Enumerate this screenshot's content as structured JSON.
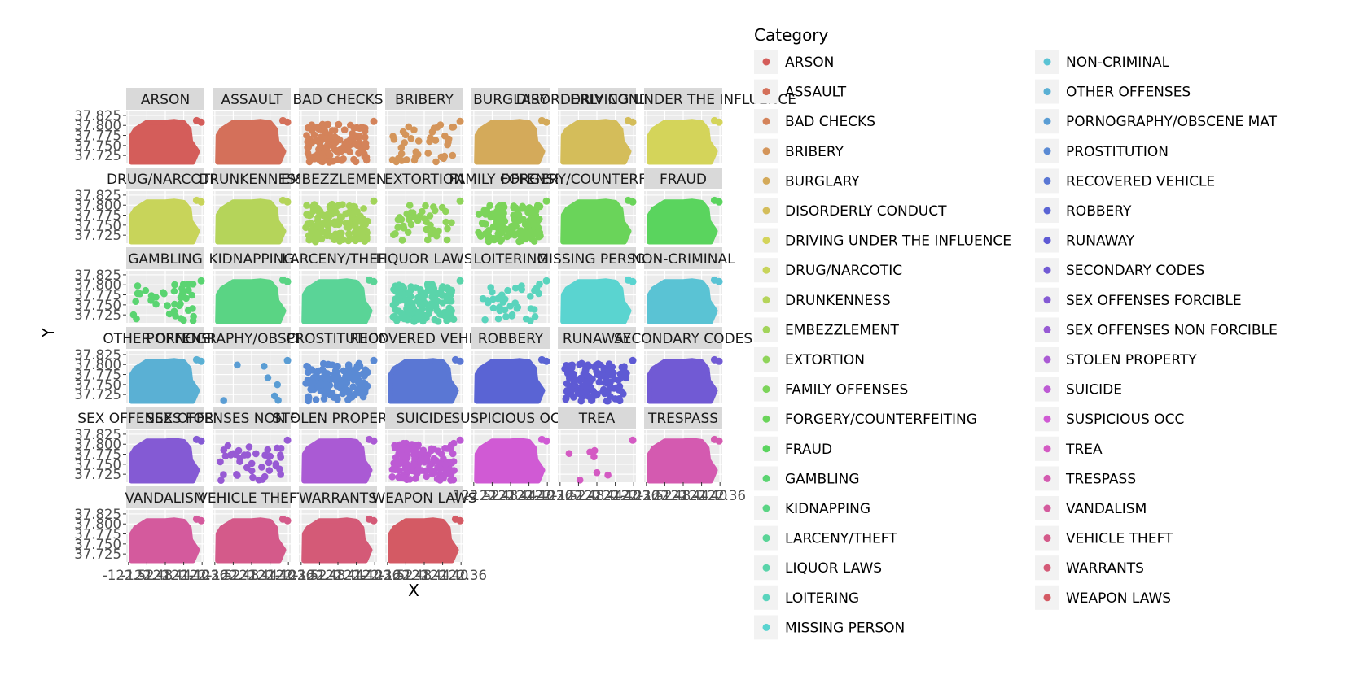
{
  "chart_data": {
    "type": "scatter",
    "facet": "wrap",
    "facet_ncol": 7,
    "xlabel": "X",
    "ylabel": "Y",
    "x_tick_labels": [
      "-122.52",
      "-122.48",
      "-122.44",
      "-122.40",
      "-122.36"
    ],
    "x_ticks": [
      -122.52,
      -122.48,
      -122.44,
      -122.4,
      -122.36
    ],
    "y_tick_labels": [
      "37.825",
      "37.800",
      "37.775",
      "37.750",
      "37.725"
    ],
    "y_ticks": [
      37.825,
      37.8,
      37.775,
      37.75,
      37.725
    ],
    "xlim": [
      -122.525,
      -122.355
    ],
    "ylim": [
      37.705,
      37.835
    ],
    "legend": {
      "title": "Category",
      "position": "right"
    },
    "grid": true,
    "panels": [
      {
        "category": "ARSON",
        "strip": "ARSON",
        "color": "#d45d5a",
        "density": "dense"
      },
      {
        "category": "ASSAULT",
        "strip": "ASSAULT",
        "color": "#d4705a",
        "density": "dense"
      },
      {
        "category": "BAD CHECKS",
        "strip": "BAD CHECKS",
        "color": "#d4835a",
        "density": "medium"
      },
      {
        "category": "BRIBERY",
        "strip": "BRIBERY",
        "color": "#d4955a",
        "density": "sparse"
      },
      {
        "category": "BURGLARY",
        "strip": "BURGLARY",
        "color": "#d4aa5a",
        "density": "dense"
      },
      {
        "category": "DISORDERLY CONDUCT",
        "strip": "DISORDERLY CONDUCT",
        "color": "#d4bd5a",
        "density": "dense"
      },
      {
        "category": "DRIVING UNDER THE INFLUENCE",
        "strip": "DRIVING UNDER THE INFLUENCE",
        "color": "#d4d45a",
        "density": "dense"
      },
      {
        "category": "DRUG/NARCOTIC",
        "strip": "DRUG/NARCOTIC",
        "color": "#c8d45a",
        "density": "dense"
      },
      {
        "category": "DRUNKENNESS",
        "strip": "DRUNKENNESS",
        "color": "#b5d45a",
        "density": "dense"
      },
      {
        "category": "EMBEZZLEMENT",
        "strip": "EMBEZZLEMENT",
        "color": "#a2d45a",
        "density": "medium"
      },
      {
        "category": "EXTORTION",
        "strip": "EXTORTION",
        "color": "#8fd45a",
        "density": "sparse"
      },
      {
        "category": "FAMILY OFFENSES",
        "strip": "FAMILY OFFENSES",
        "color": "#7cd45a",
        "density": "medium"
      },
      {
        "category": "FORGERY/COUNTERFEITING",
        "strip": "FORGERY/COUNTERFEITING",
        "color": "#6ad45a",
        "density": "dense"
      },
      {
        "category": "FRAUD",
        "strip": "FRAUD",
        "color": "#5ad45e",
        "density": "dense"
      },
      {
        "category": "GAMBLING",
        "strip": "GAMBLING",
        "color": "#5ad471",
        "density": "sparse"
      },
      {
        "category": "KIDNAPPING",
        "strip": "KIDNAPPING",
        "color": "#5ad484",
        "density": "dense"
      },
      {
        "category": "LARCENY/THEFT",
        "strip": "LARCENY/THEFT",
        "color": "#5ad497",
        "density": "dense"
      },
      {
        "category": "LIQUOR LAWS",
        "strip": "LIQUOR LAWS",
        "color": "#5ad4aa",
        "density": "medium"
      },
      {
        "category": "LOITERING",
        "strip": "LOITERING",
        "color": "#5ad4bd",
        "density": "sparse"
      },
      {
        "category": "MISSING PERSON",
        "strip": "MISSING PERSON",
        "color": "#5ad4d0",
        "density": "dense"
      },
      {
        "category": "NON-CRIMINAL",
        "strip": "NON-CRIMINAL",
        "color": "#5ac3d4",
        "density": "dense"
      },
      {
        "category": "OTHER OFFENSES",
        "strip": "OTHER OFFENSES",
        "color": "#5ab0d4",
        "density": "dense"
      },
      {
        "category": "PORNOGRAPHY/OBSCENE MAT",
        "strip": "PORNOGRAPHY/OBSCENE MAT",
        "color": "#5a9dd4",
        "density": "tiny"
      },
      {
        "category": "PROSTITUTION",
        "strip": "PROSTITUTION",
        "color": "#5a8ad4",
        "density": "medium"
      },
      {
        "category": "RECOVERED VEHICLE",
        "strip": "RECOVERED VEHICLE",
        "color": "#5a77d4",
        "density": "dense"
      },
      {
        "category": "ROBBERY",
        "strip": "ROBBERY",
        "color": "#5a64d4",
        "density": "dense"
      },
      {
        "category": "RUNAWAY",
        "strip": "RUNAWAY",
        "color": "#5e5ad4",
        "density": "medium"
      },
      {
        "category": "SECONDARY CODES",
        "strip": "SECONDARY CODES",
        "color": "#715ad4",
        "density": "dense"
      },
      {
        "category": "SEX OFFENSES FORCIBLE",
        "strip": "SEX OFFENSES FORCIBLE",
        "color": "#845ad4",
        "density": "dense"
      },
      {
        "category": "SEX OFFENSES NON FORCIBLE",
        "strip": "SEX OFFENSES NON FORCIBLE",
        "color": "#975ad4",
        "density": "sparse"
      },
      {
        "category": "STOLEN PROPERTY",
        "strip": "STOLEN PROPERTY",
        "color": "#aa5ad4",
        "density": "dense"
      },
      {
        "category": "SUICIDE",
        "strip": "SUICIDE",
        "color": "#bd5ad4",
        "density": "medium"
      },
      {
        "category": "SUSPICIOUS OCC",
        "strip": "SUSPICIOUS OCC",
        "color": "#d05ad4",
        "density": "dense"
      },
      {
        "category": "TREA",
        "strip": "TREA",
        "color": "#d45ac3",
        "density": "tiny"
      },
      {
        "category": "TRESPASS",
        "strip": "TRESPASS",
        "color": "#d45ab0",
        "density": "dense"
      },
      {
        "category": "VANDALISM",
        "strip": "VANDALISM",
        "color": "#d45a9d",
        "density": "dense"
      },
      {
        "category": "VEHICLE THEFT",
        "strip": "VEHICLE THEFT",
        "color": "#d45a8a",
        "density": "dense"
      },
      {
        "category": "WARRANTS",
        "strip": "WARRANTS",
        "color": "#d45a77",
        "density": "dense"
      },
      {
        "category": "WEAPON LAWS",
        "strip": "WEAPON LAWS",
        "color": "#d45a64",
        "density": "dense"
      }
    ]
  }
}
